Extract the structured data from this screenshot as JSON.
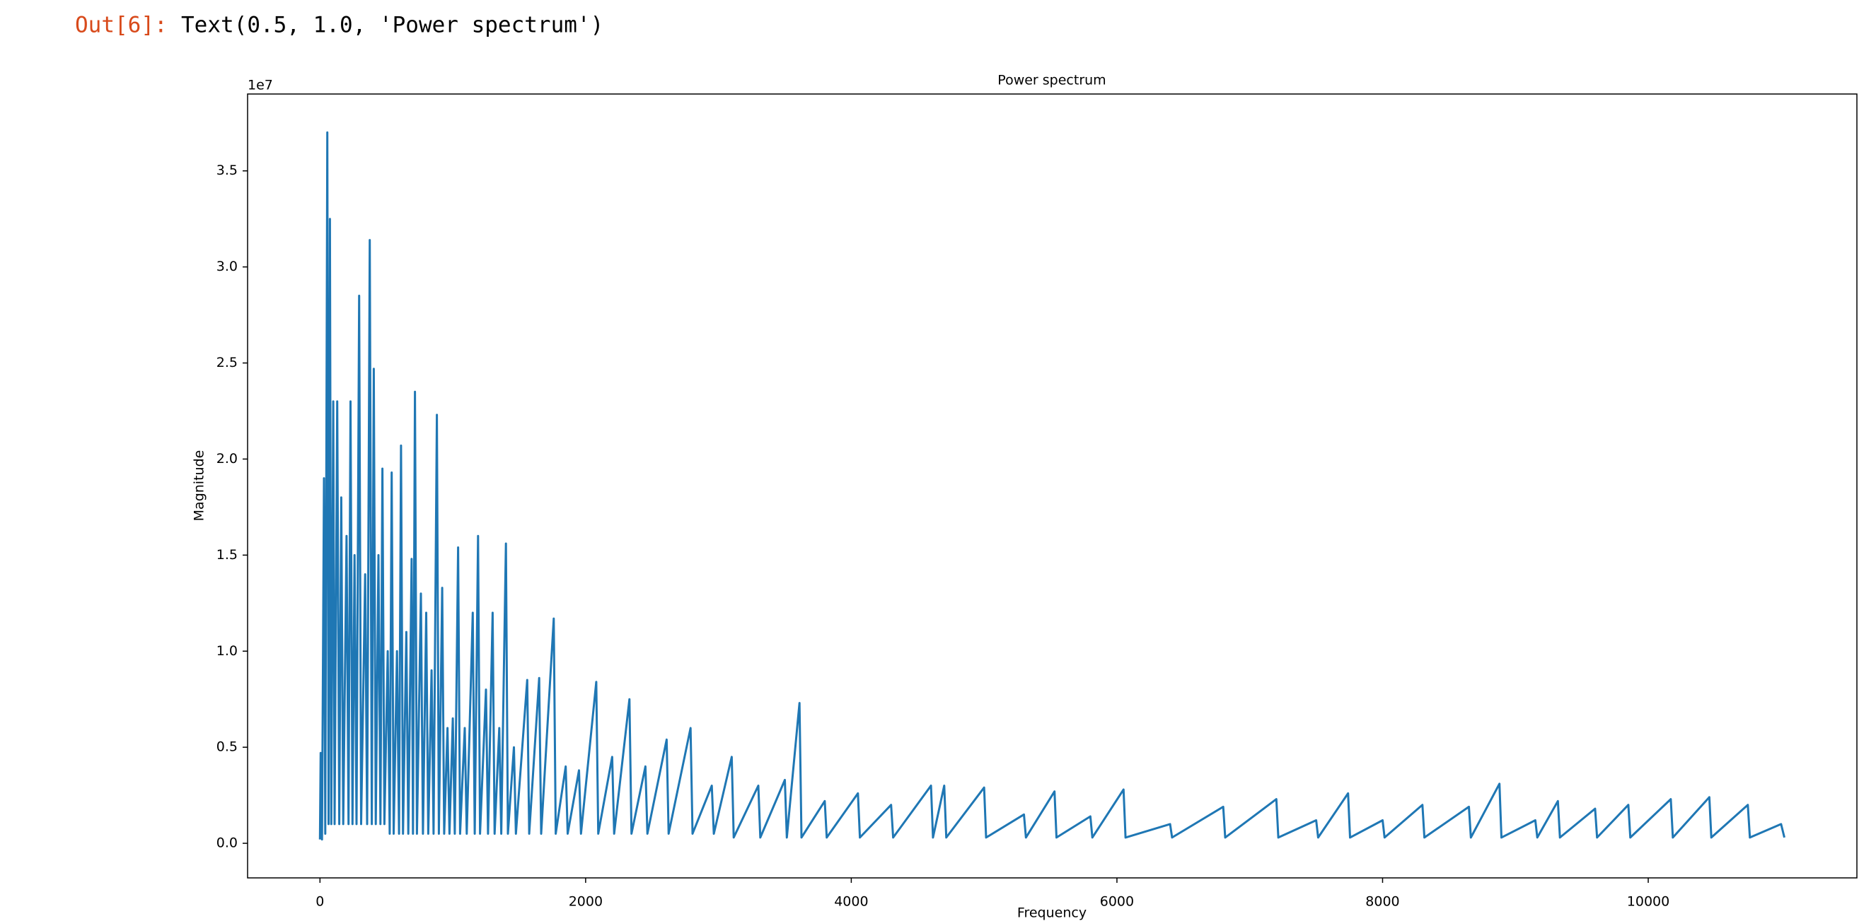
{
  "cell": {
    "prompt": "Out[6]:",
    "output": "Text(0.5, 1.0, 'Power spectrum')"
  },
  "chart_data": {
    "type": "line",
    "title": "Power spectrum",
    "xlabel": "Frequency",
    "ylabel": "Magnitude",
    "y_offset_text": "1e7",
    "color": "#1f77b4",
    "grid": false,
    "xlim": [
      -545,
      11571
    ],
    "ylim": [
      -0.18,
      3.9
    ],
    "xticks": [
      0,
      2000,
      4000,
      6000,
      8000,
      10000
    ],
    "yticks": [
      {
        "value": 0,
        "label": "0.0"
      },
      0.5,
      {
        "value": 1,
        "label": "1.0"
      },
      1.5,
      {
        "value": 2,
        "label": "2.0"
      },
      2.5,
      {
        "value": 3,
        "label": "3.0"
      },
      3.5
    ],
    "x": [
      0,
      5,
      15,
      30,
      40,
      55,
      65,
      75,
      85,
      100,
      110,
      130,
      145,
      160,
      175,
      200,
      215,
      230,
      245,
      260,
      275,
      295,
      310,
      340,
      355,
      375,
      390,
      405,
      420,
      440,
      455,
      470,
      485,
      510,
      525,
      540,
      555,
      580,
      595,
      610,
      625,
      650,
      665,
      690,
      700,
      715,
      730,
      760,
      775,
      800,
      815,
      840,
      855,
      880,
      895,
      920,
      935,
      960,
      975,
      1000,
      1015,
      1040,
      1055,
      1090,
      1105,
      1150,
      1165,
      1190,
      1205,
      1250,
      1265,
      1300,
      1315,
      1350,
      1365,
      1400,
      1415,
      1460,
      1475,
      1560,
      1575,
      1650,
      1665,
      1760,
      1775,
      1850,
      1865,
      1950,
      1965,
      2080,
      2095,
      2200,
      2215,
      2330,
      2345,
      2450,
      2465,
      2610,
      2625,
      2790,
      2805,
      2950,
      2965,
      3100,
      3115,
      3300,
      3315,
      3500,
      3515,
      3610,
      3625,
      3800,
      3815,
      4050,
      4065,
      4300,
      4315,
      4600,
      4615,
      4700,
      4715,
      5000,
      5015,
      5300,
      5315,
      5530,
      5545,
      5800,
      5815,
      6050,
      6065,
      6400,
      6415,
      6800,
      6815,
      7200,
      7215,
      7500,
      7515,
      7740,
      7755,
      8000,
      8015,
      8300,
      8315,
      8650,
      8665,
      8880,
      8895,
      9150,
      9165,
      9320,
      9335,
      9600,
      9615,
      9850,
      9865,
      10170,
      10185,
      10460,
      10475,
      10750,
      10765,
      11000,
      11025
    ],
    "values": [
      0.02,
      0.47,
      0.02,
      1.9,
      0.05,
      3.7,
      0.1,
      3.25,
      0.1,
      2.3,
      0.1,
      2.3,
      0.1,
      1.8,
      0.1,
      1.6,
      0.1,
      2.3,
      0.1,
      1.5,
      0.1,
      2.85,
      0.1,
      1.4,
      0.1,
      3.14,
      0.1,
      2.47,
      0.1,
      1.5,
      0.1,
      1.95,
      0.1,
      1.0,
      0.05,
      1.93,
      0.05,
      1.0,
      0.05,
      2.07,
      0.05,
      1.1,
      0.05,
      1.48,
      0.05,
      2.35,
      0.05,
      1.3,
      0.05,
      1.2,
      0.05,
      0.9,
      0.05,
      2.23,
      0.05,
      1.33,
      0.05,
      0.6,
      0.05,
      0.65,
      0.05,
      1.54,
      0.05,
      0.6,
      0.05,
      1.2,
      0.05,
      1.6,
      0.05,
      0.8,
      0.05,
      1.2,
      0.05,
      0.6,
      0.05,
      1.56,
      0.05,
      0.5,
      0.05,
      0.85,
      0.05,
      0.86,
      0.05,
      1.17,
      0.05,
      0.4,
      0.05,
      0.38,
      0.05,
      0.84,
      0.05,
      0.45,
      0.05,
      0.75,
      0.05,
      0.4,
      0.05,
      0.54,
      0.05,
      0.6,
      0.05,
      0.3,
      0.05,
      0.45,
      0.03,
      0.3,
      0.03,
      0.33,
      0.03,
      0.73,
      0.03,
      0.22,
      0.03,
      0.26,
      0.03,
      0.2,
      0.03,
      0.3,
      0.03,
      0.3,
      0.03,
      0.29,
      0.03,
      0.15,
      0.03,
      0.27,
      0.03,
      0.14,
      0.03,
      0.28,
      0.03,
      0.1,
      0.03,
      0.19,
      0.03,
      0.23,
      0.03,
      0.12,
      0.03,
      0.26,
      0.03,
      0.12,
      0.03,
      0.2,
      0.03,
      0.19,
      0.03,
      0.31,
      0.03,
      0.12,
      0.03,
      0.22,
      0.03,
      0.18,
      0.03,
      0.2,
      0.03,
      0.23,
      0.03,
      0.24,
      0.03,
      0.2,
      0.03,
      0.1,
      0.03
    ]
  }
}
